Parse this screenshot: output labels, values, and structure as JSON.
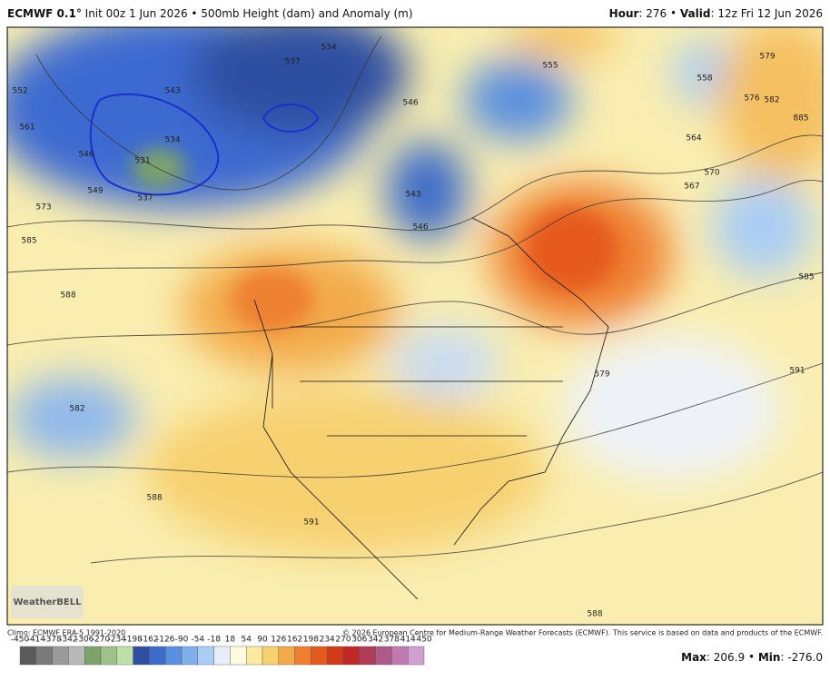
{
  "header": {
    "model": "ECMWF 0.1°",
    "title": "Init 00z 1 Jun 2026 • 500mb Height (dam) and Anomaly (m)",
    "hour_label": "Hour",
    "hour": "276",
    "valid_label": "Valid",
    "valid": "12z Fri 12 Jun 2026"
  },
  "map": {
    "logo": "WeatherBELL",
    "contour_labels": [
      "552",
      "561",
      "573",
      "585",
      "546",
      "549",
      "531",
      "534",
      "537",
      "543",
      "537",
      "534",
      "546",
      "543",
      "546",
      "555",
      "558",
      "564",
      "567",
      "570",
      "576",
      "579",
      "582",
      "885",
      "585",
      "588",
      "582",
      "579",
      "591",
      "588",
      "591",
      "588"
    ]
  },
  "footer": {
    "climo": "Climo: ECMWF ERA-5 1991-2020",
    "copyright": "© 2026 European Centre for Medium-Range Weather Forecasts (ECMWF). This service is based on data and products of the ECMWF.",
    "colorbar": {
      "ticks": [
        -450,
        -414,
        -378,
        -342,
        -306,
        -270,
        -234,
        -198,
        -162,
        -126,
        -90,
        -54,
        -18,
        18,
        54,
        90,
        126,
        162,
        198,
        234,
        270,
        306,
        342,
        378,
        414,
        450
      ],
      "colors": [
        "#5a5a5a",
        "#7a7a7a",
        "#9a9a9a",
        "#b9b9b9",
        "#7ea36a",
        "#9ec28a",
        "#bfdfa8",
        "#2f4fa0",
        "#3c6cc8",
        "#5a8fdf",
        "#7fb0ec",
        "#a9cdf5",
        "#e8eef8",
        "#fffbe0",
        "#fbeaa0",
        "#f7d070",
        "#f3aa48",
        "#ee8030",
        "#e55a1e",
        "#d23a18",
        "#c02828",
        "#b03c5a",
        "#b05a8a",
        "#c07ab0",
        "#d0a0d0"
      ]
    },
    "max_label": "Max",
    "max": "206.9",
    "min_label": "Min",
    "min": "-276.0"
  }
}
